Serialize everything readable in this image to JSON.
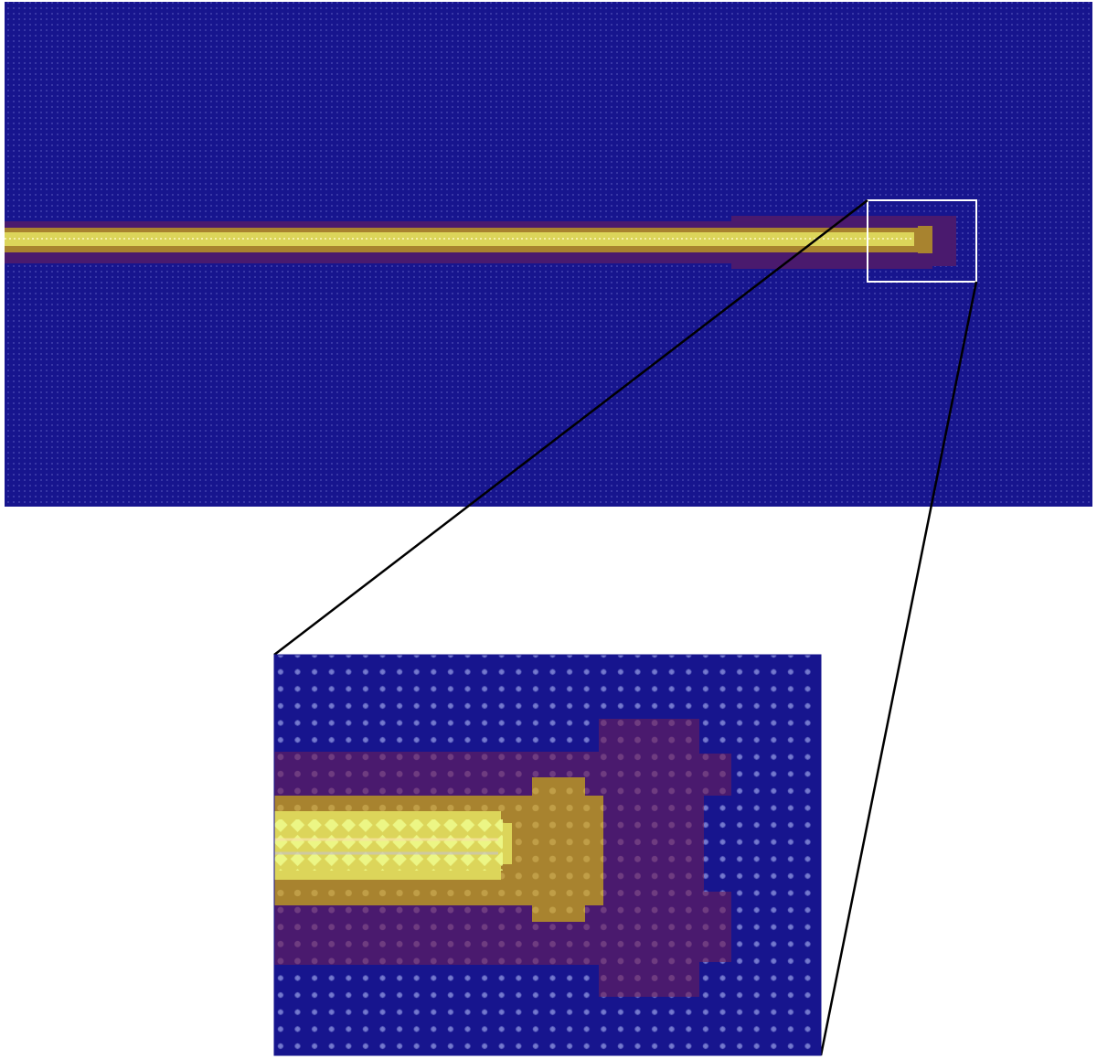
{
  "colors": {
    "background": "#ffffff",
    "field": "#17158e",
    "halo": "#4a1a6e",
    "crack_outer": "#a8832f",
    "crack_core": "#dcd55a",
    "crack_tip_highlight": "#e8f77a",
    "inset_frame": "#ffffff",
    "connector_lines": "#000000"
  },
  "icons": {
    "overview": "crack-overview-image",
    "zoom": "crack-tip-zoom-image"
  }
}
